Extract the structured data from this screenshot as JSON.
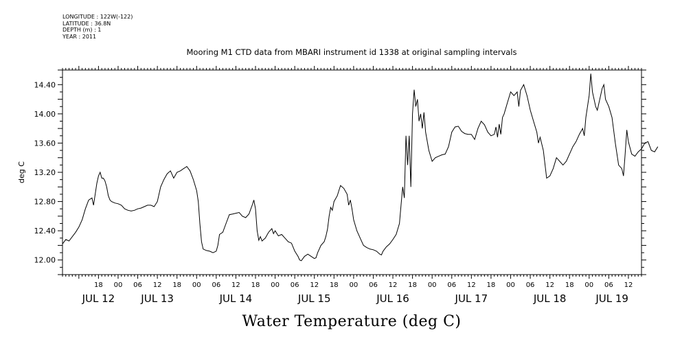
{
  "metadata": {
    "longitude": "LONGITUDE : 122W(-122)",
    "latitude": "LATITUDE : 36.8N",
    "depth": "DEPTH (m) : 1",
    "year": "YEAR : 2011"
  },
  "chart_data": {
    "type": "line",
    "title": "Mooring M1 CTD data from MBARI instrument id 1338 at original sampling intervals",
    "xlabel": "Water Temperature (deg C)",
    "ylabel": "deg C",
    "ylim": [
      11.8,
      14.6
    ],
    "xlim_hours": [
      -17,
      160
    ],
    "yticks": [
      "12.00",
      "12.40",
      "12.80",
      "13.20",
      "13.60",
      "14.00",
      "14.40"
    ],
    "xticks": [
      {
        "h": -6,
        "label": "18"
      },
      {
        "h": 0,
        "label": "00"
      },
      {
        "h": 6,
        "label": "06"
      },
      {
        "h": 12,
        "label": "12"
      },
      {
        "h": 18,
        "label": "18"
      },
      {
        "h": 24,
        "label": "00"
      },
      {
        "h": 30,
        "label": "06"
      },
      {
        "h": 36,
        "label": "12"
      },
      {
        "h": 42,
        "label": "18"
      },
      {
        "h": 48,
        "label": "00"
      },
      {
        "h": 54,
        "label": "06"
      },
      {
        "h": 60,
        "label": "12"
      },
      {
        "h": 66,
        "label": "18"
      },
      {
        "h": 72,
        "label": "00"
      },
      {
        "h": 78,
        "label": "06"
      },
      {
        "h": 84,
        "label": "12"
      },
      {
        "h": 90,
        "label": "18"
      },
      {
        "h": 96,
        "label": "00"
      },
      {
        "h": 102,
        "label": "06"
      },
      {
        "h": 108,
        "label": "12"
      },
      {
        "h": 114,
        "label": "18"
      },
      {
        "h": 120,
        "label": "00"
      },
      {
        "h": 126,
        "label": "06"
      },
      {
        "h": 132,
        "label": "12"
      },
      {
        "h": 138,
        "label": "18"
      },
      {
        "h": 144,
        "label": "00"
      },
      {
        "h": 150,
        "label": "06"
      },
      {
        "h": 156,
        "label": "12"
      }
    ],
    "day_labels": [
      {
        "h": -6,
        "label": "JUL 12"
      },
      {
        "h": 12,
        "label": "JUL 13"
      },
      {
        "h": 36,
        "label": "JUL 14"
      },
      {
        "h": 60,
        "label": "JUL 15"
      },
      {
        "h": 84,
        "label": "JUL 16"
      },
      {
        "h": 108,
        "label": "JUL 17"
      },
      {
        "h": 132,
        "label": "JUL 18"
      },
      {
        "h": 151,
        "label": "JUL 19"
      }
    ],
    "series": [
      {
        "values": [
          [
            -17,
            12.22
          ],
          [
            -16,
            12.28
          ],
          [
            -15,
            12.26
          ],
          [
            -14,
            12.32
          ],
          [
            -13,
            12.38
          ],
          [
            -12,
            12.45
          ],
          [
            -11,
            12.55
          ],
          [
            -10,
            12.7
          ],
          [
            -9,
            12.82
          ],
          [
            -8,
            12.85
          ],
          [
            -7.5,
            12.75
          ],
          [
            -7,
            12.9
          ],
          [
            -6.5,
            13.05
          ],
          [
            -6,
            13.15
          ],
          [
            -5.5,
            13.2
          ],
          [
            -5,
            13.12
          ],
          [
            -4.5,
            13.12
          ],
          [
            -4,
            13.08
          ],
          [
            -3.5,
            13.0
          ],
          [
            -3,
            12.88
          ],
          [
            -2.5,
            12.82
          ],
          [
            -2,
            12.8
          ],
          [
            -1,
            12.78
          ],
          [
            0,
            12.77
          ],
          [
            1,
            12.75
          ],
          [
            2,
            12.7
          ],
          [
            3,
            12.68
          ],
          [
            4,
            12.67
          ],
          [
            5,
            12.68
          ],
          [
            6,
            12.7
          ],
          [
            7,
            12.71
          ],
          [
            8,
            12.73
          ],
          [
            9,
            12.75
          ],
          [
            10,
            12.75
          ],
          [
            11,
            12.73
          ],
          [
            12,
            12.8
          ],
          [
            12.5,
            12.9
          ],
          [
            13,
            13.0
          ],
          [
            14,
            13.1
          ],
          [
            15,
            13.18
          ],
          [
            16,
            13.22
          ],
          [
            17,
            13.12
          ],
          [
            18,
            13.2
          ],
          [
            19,
            13.22
          ],
          [
            20,
            13.25
          ],
          [
            21,
            13.28
          ],
          [
            22,
            13.22
          ],
          [
            23,
            13.1
          ],
          [
            24,
            12.95
          ],
          [
            24.5,
            12.8
          ],
          [
            25,
            12.5
          ],
          [
            25.5,
            12.25
          ],
          [
            26,
            12.15
          ],
          [
            27,
            12.13
          ],
          [
            28,
            12.12
          ],
          [
            29,
            12.1
          ],
          [
            30,
            12.12
          ],
          [
            30.5,
            12.2
          ],
          [
            31,
            12.35
          ],
          [
            32,
            12.38
          ],
          [
            33,
            12.5
          ],
          [
            34,
            12.62
          ],
          [
            35,
            12.63
          ],
          [
            36,
            12.64
          ],
          [
            37,
            12.65
          ],
          [
            38,
            12.6
          ],
          [
            39,
            12.58
          ],
          [
            40,
            12.63
          ],
          [
            41,
            12.75
          ],
          [
            41.5,
            12.82
          ],
          [
            42,
            12.7
          ],
          [
            42.5,
            12.4
          ],
          [
            43,
            12.27
          ],
          [
            43.5,
            12.32
          ],
          [
            44,
            12.26
          ],
          [
            45,
            12.3
          ],
          [
            46,
            12.38
          ],
          [
            47,
            12.43
          ],
          [
            47.5,
            12.36
          ],
          [
            48,
            12.4
          ],
          [
            49,
            12.33
          ],
          [
            50,
            12.35
          ],
          [
            51,
            12.3
          ],
          [
            52,
            12.25
          ],
          [
            53,
            12.23
          ],
          [
            54,
            12.12
          ],
          [
            55,
            12.05
          ],
          [
            55.5,
            12.0
          ],
          [
            56,
            11.99
          ],
          [
            57,
            12.05
          ],
          [
            58,
            12.08
          ],
          [
            59,
            12.05
          ],
          [
            60,
            12.02
          ],
          [
            60.5,
            12.03
          ],
          [
            61,
            12.1
          ],
          [
            62,
            12.2
          ],
          [
            63,
            12.25
          ],
          [
            63.5,
            12.32
          ],
          [
            64,
            12.42
          ],
          [
            64.5,
            12.6
          ],
          [
            65,
            12.72
          ],
          [
            65.5,
            12.68
          ],
          [
            66,
            12.8
          ],
          [
            67,
            12.88
          ],
          [
            67.5,
            12.95
          ],
          [
            68,
            13.02
          ],
          [
            69,
            12.98
          ],
          [
            70,
            12.9
          ],
          [
            70.5,
            12.75
          ],
          [
            71,
            12.82
          ],
          [
            71.5,
            12.7
          ],
          [
            72,
            12.55
          ],
          [
            73,
            12.4
          ],
          [
            74,
            12.3
          ],
          [
            75,
            12.2
          ],
          [
            76,
            12.17
          ],
          [
            77,
            12.15
          ],
          [
            78,
            12.14
          ],
          [
            79,
            12.12
          ],
          [
            80,
            12.08
          ],
          [
            80.5,
            12.07
          ],
          [
            81,
            12.12
          ],
          [
            82,
            12.18
          ],
          [
            83,
            12.22
          ],
          [
            84,
            12.28
          ],
          [
            85,
            12.35
          ],
          [
            86,
            12.5
          ],
          [
            86.5,
            12.75
          ],
          [
            87,
            13.0
          ],
          [
            87.5,
            12.85
          ],
          [
            88,
            13.7
          ],
          [
            88.5,
            13.3
          ],
          [
            89,
            13.7
          ],
          [
            89.5,
            13.0
          ],
          [
            90,
            14.0
          ],
          [
            90.5,
            14.33
          ],
          [
            91,
            14.1
          ],
          [
            91.5,
            14.2
          ],
          [
            92,
            13.9
          ],
          [
            92.5,
            14.0
          ],
          [
            93,
            13.8
          ],
          [
            93.5,
            14.02
          ],
          [
            94,
            13.75
          ],
          [
            95,
            13.5
          ],
          [
            96,
            13.35
          ],
          [
            97,
            13.4
          ],
          [
            98,
            13.42
          ],
          [
            99,
            13.44
          ],
          [
            100,
            13.45
          ],
          [
            101,
            13.55
          ],
          [
            102,
            13.75
          ],
          [
            103,
            13.82
          ],
          [
            104,
            13.83
          ],
          [
            105,
            13.76
          ],
          [
            106,
            13.73
          ],
          [
            107,
            13.72
          ],
          [
            108,
            13.72
          ],
          [
            109,
            13.65
          ],
          [
            110,
            13.8
          ],
          [
            111,
            13.9
          ],
          [
            112,
            13.85
          ],
          [
            113,
            13.75
          ],
          [
            114,
            13.7
          ],
          [
            115,
            13.72
          ],
          [
            115.5,
            13.82
          ],
          [
            116,
            13.68
          ],
          [
            116.5,
            13.86
          ],
          [
            117,
            13.72
          ],
          [
            117.5,
            13.95
          ],
          [
            118,
            14.0
          ],
          [
            119,
            14.15
          ],
          [
            120,
            14.3
          ],
          [
            121,
            14.25
          ],
          [
            122,
            14.3
          ],
          [
            122.5,
            14.1
          ],
          [
            123,
            14.32
          ],
          [
            124,
            14.4
          ],
          [
            125,
            14.25
          ],
          [
            126,
            14.05
          ],
          [
            127,
            13.9
          ],
          [
            128,
            13.75
          ],
          [
            128.5,
            13.6
          ],
          [
            129,
            13.68
          ],
          [
            130,
            13.5
          ],
          [
            131,
            13.12
          ],
          [
            132,
            13.15
          ],
          [
            133,
            13.25
          ],
          [
            134,
            13.4
          ],
          [
            135,
            13.35
          ],
          [
            136,
            13.3
          ],
          [
            137,
            13.35
          ],
          [
            138,
            13.45
          ],
          [
            139,
            13.55
          ],
          [
            140,
            13.62
          ],
          [
            141,
            13.72
          ],
          [
            142,
            13.8
          ],
          [
            142.5,
            13.7
          ],
          [
            143,
            13.95
          ],
          [
            144,
            14.25
          ],
          [
            144.5,
            14.55
          ],
          [
            145,
            14.3
          ],
          [
            146,
            14.1
          ],
          [
            146.5,
            14.05
          ],
          [
            147,
            14.15
          ],
          [
            148,
            14.35
          ],
          [
            148.5,
            14.4
          ],
          [
            149,
            14.2
          ],
          [
            150,
            14.1
          ],
          [
            151,
            13.95
          ],
          [
            152,
            13.6
          ],
          [
            153,
            13.3
          ],
          [
            154,
            13.25
          ],
          [
            154.5,
            13.15
          ],
          [
            155,
            13.45
          ],
          [
            155.5,
            13.78
          ],
          [
            156,
            13.62
          ],
          [
            157,
            13.45
          ],
          [
            158,
            13.42
          ],
          [
            159,
            13.48
          ],
          [
            160,
            13.52
          ],
          [
            161,
            13.6
          ],
          [
            162,
            13.62
          ],
          [
            163,
            13.5
          ],
          [
            164,
            13.48
          ],
          [
            165,
            13.55
          ]
        ]
      }
    ]
  }
}
